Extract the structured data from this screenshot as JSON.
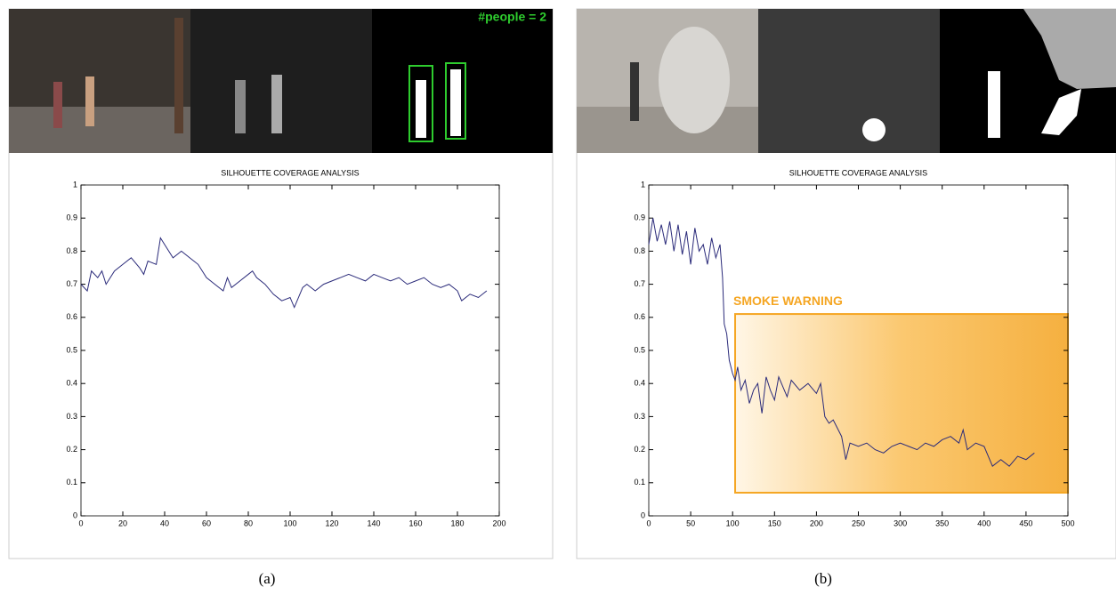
{
  "chart_data": [
    {
      "type": "line",
      "title": "SILHOUETTE COVERAGE ANALYSIS",
      "color": "#2b2b7a",
      "x": [
        0,
        3,
        5,
        8,
        10,
        12,
        16,
        20,
        24,
        28,
        30,
        32,
        36,
        38,
        40,
        44,
        48,
        52,
        56,
        60,
        64,
        68,
        70,
        72,
        76,
        80,
        82,
        84,
        88,
        92,
        96,
        100,
        102,
        106,
        108,
        112,
        116,
        120,
        124,
        128,
        132,
        136,
        140,
        144,
        148,
        152,
        156,
        160,
        164,
        168,
        172,
        176,
        180,
        182,
        186,
        190,
        194
      ],
      "values": [
        0.7,
        0.68,
        0.74,
        0.72,
        0.74,
        0.7,
        0.74,
        0.76,
        0.78,
        0.75,
        0.73,
        0.77,
        0.76,
        0.84,
        0.82,
        0.78,
        0.8,
        0.78,
        0.76,
        0.72,
        0.7,
        0.68,
        0.72,
        0.69,
        0.71,
        0.73,
        0.74,
        0.72,
        0.7,
        0.67,
        0.65,
        0.66,
        0.63,
        0.69,
        0.7,
        0.68,
        0.7,
        0.71,
        0.72,
        0.73,
        0.72,
        0.71,
        0.73,
        0.72,
        0.71,
        0.72,
        0.7,
        0.71,
        0.72,
        0.7,
        0.69,
        0.7,
        0.68,
        0.65,
        0.67,
        0.66,
        0.68
      ],
      "xlim": [
        0,
        200
      ],
      "xticks": [
        0,
        20,
        40,
        60,
        80,
        100,
        120,
        140,
        160,
        180,
        200
      ],
      "ylim": [
        0,
        1
      ],
      "yticks": [
        0,
        0.1,
        0.2,
        0.3,
        0.4,
        0.5,
        0.6,
        0.7,
        0.8,
        0.9,
        1
      ]
    },
    {
      "type": "line",
      "title": "SILHOUETTE COVERAGE ANALYSIS",
      "color": "#2b2b7a",
      "x": [
        0,
        5,
        10,
        15,
        20,
        25,
        30,
        35,
        40,
        45,
        50,
        55,
        60,
        65,
        70,
        75,
        80,
        85,
        88,
        90,
        93,
        96,
        100,
        103,
        106,
        110,
        115,
        120,
        125,
        130,
        135,
        140,
        145,
        150,
        155,
        160,
        165,
        170,
        180,
        190,
        200,
        205,
        210,
        215,
        220,
        230,
        235,
        240,
        250,
        260,
        270,
        280,
        290,
        300,
        310,
        320,
        330,
        340,
        350,
        360,
        370,
        375,
        380,
        390,
        400,
        405,
        410,
        420,
        430,
        440,
        450,
        460
      ],
      "values": [
        0.82,
        0.9,
        0.83,
        0.88,
        0.82,
        0.89,
        0.8,
        0.88,
        0.79,
        0.86,
        0.76,
        0.87,
        0.8,
        0.82,
        0.76,
        0.84,
        0.78,
        0.82,
        0.72,
        0.58,
        0.55,
        0.47,
        0.43,
        0.41,
        0.45,
        0.38,
        0.41,
        0.34,
        0.38,
        0.4,
        0.31,
        0.42,
        0.38,
        0.35,
        0.42,
        0.39,
        0.36,
        0.41,
        0.38,
        0.4,
        0.37,
        0.4,
        0.3,
        0.28,
        0.29,
        0.24,
        0.17,
        0.22,
        0.21,
        0.22,
        0.2,
        0.19,
        0.21,
        0.22,
        0.21,
        0.2,
        0.22,
        0.21,
        0.23,
        0.24,
        0.22,
        0.26,
        0.2,
        0.22,
        0.21,
        0.18,
        0.15,
        0.17,
        0.15,
        0.18,
        0.17,
        0.19
      ],
      "xlim": [
        0,
        500
      ],
      "xticks": [
        0,
        50,
        100,
        150,
        200,
        250,
        300,
        350,
        400,
        450,
        500
      ],
      "ylim": [
        0,
        1
      ],
      "yticks": [
        0,
        0.1,
        0.2,
        0.3,
        0.4,
        0.5,
        0.6,
        0.7,
        0.8,
        0.9,
        1
      ],
      "annotation": {
        "text": "SMOKE WARNING",
        "color": "#f5a623",
        "x": [
          103,
          500
        ],
        "y": [
          0.07,
          0.61
        ]
      }
    }
  ],
  "panels": [
    {
      "overlay_text": "#people = 2",
      "caption": "(a)"
    },
    {
      "caption": "(b)"
    }
  ]
}
